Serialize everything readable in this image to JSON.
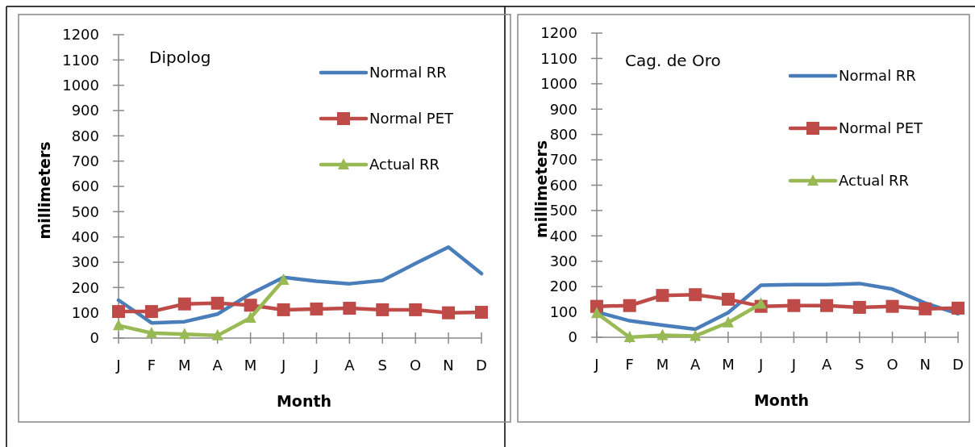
{
  "chart_data": [
    {
      "type": "line",
      "title": "Dipolog",
      "xlabel": "Month",
      "ylabel": "millimeters",
      "categories": [
        "J",
        "F",
        "M",
        "A",
        "M",
        "J",
        "J",
        "A",
        "S",
        "O",
        "N",
        "D"
      ],
      "ylim": [
        0,
        1200
      ],
      "yticks": [
        0,
        100,
        200,
        300,
        400,
        500,
        600,
        700,
        800,
        900,
        1000,
        1100,
        1200
      ],
      "legend": "top right",
      "line_style": "solid",
      "series": [
        {
          "name": "Normal RR",
          "color": "#4a7ebb",
          "marker": "none",
          "values": [
            150,
            60,
            65,
            95,
            175,
            240,
            225,
            215,
            228,
            295,
            360,
            255
          ]
        },
        {
          "name": "Normal PET",
          "color": "#be4b48",
          "marker": "square",
          "values": [
            105,
            105,
            135,
            138,
            130,
            112,
            115,
            118,
            112,
            112,
            100,
            102
          ]
        },
        {
          "name": "Actual RR",
          "color": "#98b954",
          "marker": "triangle",
          "values": [
            50,
            20,
            15,
            10,
            80,
            230,
            null,
            null,
            null,
            null,
            null,
            null
          ]
        }
      ]
    },
    {
      "type": "line",
      "title": "Cag. de Oro",
      "xlabel": "Month",
      "ylabel": "millimeters",
      "categories": [
        "J",
        "F",
        "M",
        "A",
        "M",
        "J",
        "J",
        "A",
        "S",
        "O",
        "N",
        "D"
      ],
      "ylim": [
        0,
        1200
      ],
      "yticks": [
        0,
        100,
        200,
        300,
        400,
        500,
        600,
        700,
        800,
        900,
        1000,
        1100,
        1200
      ],
      "legend": "top right",
      "line_style": "solid",
      "series": [
        {
          "name": "Normal RR",
          "color": "#4a7ebb",
          "marker": "none",
          "values": [
            100,
            65,
            48,
            32,
            97,
            205,
            208,
            208,
            212,
            190,
            135,
            93
          ]
        },
        {
          "name": "Normal PET",
          "color": "#be4b48",
          "marker": "square",
          "values": [
            122,
            125,
            165,
            168,
            150,
            122,
            125,
            125,
            118,
            122,
            112,
            115
          ]
        },
        {
          "name": "Actual RR",
          "color": "#98b954",
          "marker": "triangle",
          "values": [
            95,
            0,
            8,
            5,
            58,
            132,
            null,
            null,
            null,
            null,
            null,
            null
          ]
        }
      ]
    }
  ]
}
